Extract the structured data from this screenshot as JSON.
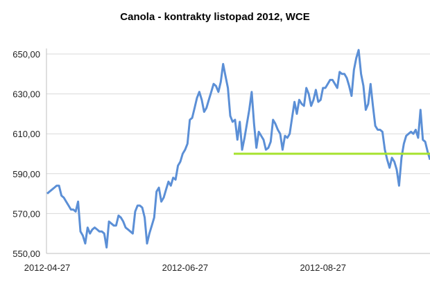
{
  "chart_data": {
    "type": "line",
    "title": "Canola - kontrakty listopad 2012, WCE",
    "ylim": [
      550,
      650
    ],
    "yticks": [
      "550,00",
      "570,00",
      "590,00",
      "610,00",
      "630,00",
      "650,00"
    ],
    "ytick_values": [
      550,
      570,
      590,
      610,
      630,
      650
    ],
    "xticks": [
      "2012-04-27",
      "2012-06-27",
      "2012-08-27"
    ],
    "grid": "horizontal",
    "colors": {
      "series": "#5b8fd6",
      "level": "#a6e22e",
      "grid": "#d9d9d9"
    },
    "series": [
      {
        "values": [
          580,
          581,
          582,
          583,
          584,
          584,
          579,
          578,
          576,
          574,
          572,
          572,
          571,
          576,
          561,
          559,
          555,
          563,
          560,
          562,
          563,
          562,
          561,
          561,
          560,
          553,
          566,
          565,
          564,
          564,
          569,
          568,
          566,
          563,
          562,
          561,
          560,
          571,
          574,
          574,
          573,
          568,
          555,
          560,
          564,
          568,
          581,
          583,
          576,
          578,
          582,
          586,
          584,
          588,
          587,
          594,
          596,
          600,
          602,
          605,
          617,
          618,
          623,
          628,
          631,
          627,
          621,
          623,
          627,
          631,
          635,
          634,
          631,
          636,
          645,
          639,
          633,
          619,
          616,
          617,
          607,
          616,
          602,
          608,
          615,
          622,
          631,
          615,
          603,
          611,
          609,
          607,
          602,
          603,
          606,
          617,
          615,
          612,
          610,
          602,
          609,
          608,
          610,
          618,
          626,
          620,
          627,
          625,
          624,
          633,
          630,
          624,
          627,
          632,
          626,
          627,
          633,
          633,
          635,
          637,
          637,
          635,
          633,
          641,
          640,
          640,
          638,
          634,
          629,
          642,
          648,
          652,
          640,
          634,
          622,
          625,
          635,
          624,
          614,
          612,
          612,
          611,
          602,
          597,
          593,
          598,
          596,
          592,
          584,
          598,
          605,
          609,
          610,
          611,
          610,
          612,
          608,
          622,
          607,
          606,
          601,
          597
        ]
      }
    ],
    "reference_line": {
      "value": 600
    }
  }
}
